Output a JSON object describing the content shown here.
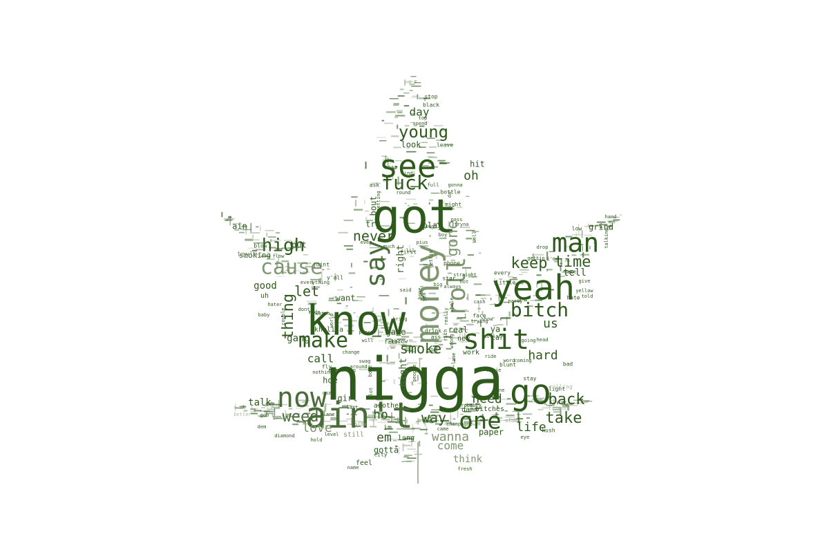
{
  "wordcloud": {
    "shape": "cannabis-leaf",
    "colors": {
      "dark": "#2e5a1c",
      "mid": "#4a6b3a",
      "light": "#7f9771",
      "pale": "#a9b9a0"
    },
    "words": [
      {
        "text": "nigga",
        "shade": "dark"
      },
      {
        "text": "know",
        "shade": "dark"
      },
      {
        "text": "got",
        "shade": "dark"
      },
      {
        "text": "ain't",
        "shade": "mid"
      },
      {
        "text": "money",
        "shade": "light"
      },
      {
        "text": "see",
        "shade": "dark"
      },
      {
        "text": "yeah",
        "shade": "dark"
      },
      {
        "text": "shit",
        "shade": "dark"
      },
      {
        "text": "go",
        "shade": "dark"
      },
      {
        "text": "now",
        "shade": "mid"
      },
      {
        "text": "man",
        "shade": "dark"
      },
      {
        "text": "say",
        "shade": "mid"
      },
      {
        "text": "fuck",
        "shade": "dark"
      },
      {
        "text": "cause",
        "shade": "light"
      },
      {
        "text": "one",
        "shade": "dark"
      },
      {
        "text": "make",
        "shade": "dark"
      },
      {
        "text": "high",
        "shade": "dark"
      },
      {
        "text": "roll",
        "shade": "light"
      },
      {
        "text": "bitch",
        "shade": "dark"
      },
      {
        "text": "young",
        "shade": "dark"
      },
      {
        "text": "keep",
        "shade": "dark"
      },
      {
        "text": "time",
        "shade": "dark"
      },
      {
        "text": "back",
        "shade": "dark"
      },
      {
        "text": "take",
        "shade": "dark"
      },
      {
        "text": "smoke",
        "shade": "dark"
      },
      {
        "text": "weed",
        "shade": "mid"
      },
      {
        "text": "gone",
        "shade": "light"
      },
      {
        "text": "never",
        "shade": "dark"
      },
      {
        "text": "thing",
        "shade": "dark"
      },
      {
        "text": "way",
        "shade": "dark"
      },
      {
        "text": "life",
        "shade": "dark"
      },
      {
        "text": "let",
        "shade": "dark"
      },
      {
        "text": "us",
        "shade": "dark"
      },
      {
        "text": "hard",
        "shade": "dark"
      },
      {
        "text": "need",
        "shade": "dark"
      },
      {
        "text": "wanna",
        "shade": "light"
      },
      {
        "text": "ho",
        "shade": "dark"
      },
      {
        "text": "oh",
        "shade": "dark"
      },
      {
        "text": "day",
        "shade": "dark"
      },
      {
        "text": "love",
        "shade": "light"
      },
      {
        "text": "em",
        "shade": "dark"
      },
      {
        "text": "call",
        "shade": "dark"
      },
      {
        "text": "come",
        "shade": "light"
      },
      {
        "text": "good",
        "shade": "dark"
      },
      {
        "text": "tell",
        "shade": "dark"
      },
      {
        "text": "night",
        "shade": "mid"
      },
      {
        "text": "right",
        "shade": "mid"
      },
      {
        "text": "look",
        "shade": "dark"
      },
      {
        "text": "gotta",
        "shade": "dark"
      },
      {
        "text": "think",
        "shade": "light"
      },
      {
        "text": "girl",
        "shade": "dark"
      },
      {
        "text": "talk",
        "shade": "dark"
      },
      {
        "text": "put",
        "shade": "dark"
      },
      {
        "text": "gang",
        "shade": "dark"
      },
      {
        "text": "hoe",
        "shade": "dark"
      },
      {
        "text": "play",
        "shade": "dark"
      },
      {
        "text": "want",
        "shade": "dark"
      },
      {
        "text": "real",
        "shade": "dark"
      },
      {
        "text": "game",
        "shade": "dark"
      },
      {
        "text": "hit",
        "shade": "dark"
      },
      {
        "text": "bout",
        "shade": "dark"
      },
      {
        "text": "try",
        "shade": "dark"
      },
      {
        "text": "ya",
        "shade": "dark"
      },
      {
        "text": "im",
        "shade": "dark"
      },
      {
        "text": "ain",
        "shade": "dark"
      },
      {
        "text": "paper",
        "shade": "dark"
      },
      {
        "text": "smoking",
        "shade": "dark"
      },
      {
        "text": "taylor",
        "shade": "light"
      },
      {
        "text": "khalifa",
        "shade": "dark"
      },
      {
        "text": "another",
        "shade": "dark"
      },
      {
        "text": "still",
        "shade": "light"
      },
      {
        "text": "feel",
        "shade": "dark"
      },
      {
        "text": "long",
        "shade": "dark"
      },
      {
        "text": "damn",
        "shade": "dark"
      },
      {
        "text": "bitches",
        "shade": "dark"
      },
      {
        "text": "grind",
        "shade": "dark"
      },
      {
        "text": "new",
        "shade": "dark"
      },
      {
        "text": "work",
        "shade": "dark"
      },
      {
        "text": "car",
        "shade": "dark"
      },
      {
        "text": "fly",
        "shade": "dark"
      },
      {
        "text": "every",
        "shade": "dark"
      },
      {
        "text": "little",
        "shade": "dark"
      },
      {
        "text": "low",
        "shade": "dark"
      },
      {
        "text": "hate",
        "shade": "dark"
      },
      {
        "text": "bad",
        "shade": "dark"
      },
      {
        "text": "stay",
        "shade": "dark"
      },
      {
        "text": "light",
        "shade": "dark"
      },
      {
        "text": "blunt",
        "shade": "dark"
      },
      {
        "text": "kush",
        "shade": "dark"
      },
      {
        "text": "face",
        "shade": "dark"
      },
      {
        "text": "star",
        "shade": "dark"
      },
      {
        "text": "fake",
        "shade": "dark"
      },
      {
        "text": "drink",
        "shade": "dark"
      },
      {
        "text": "y'all",
        "shade": "dark"
      },
      {
        "text": "uh",
        "shade": "dark"
      },
      {
        "text": "ass",
        "shade": "dark"
      },
      {
        "text": "phone",
        "shade": "dark"
      },
      {
        "text": "city",
        "shade": "dark"
      },
      {
        "text": "boss",
        "shade": "dark"
      },
      {
        "text": "black",
        "shade": "dark"
      },
      {
        "text": "stop",
        "shade": "dark"
      },
      {
        "text": "spend",
        "shade": "dark"
      },
      {
        "text": "top",
        "shade": "dark"
      },
      {
        "text": "leave",
        "shade": "dark"
      },
      {
        "text": "find",
        "shade": "dark"
      },
      {
        "text": "round",
        "shade": "dark"
      },
      {
        "text": "bottle",
        "shade": "dark"
      },
      {
        "text": "might",
        "shade": "dark"
      },
      {
        "text": "gonna",
        "shade": "dark"
      },
      {
        "text": "ask",
        "shade": "dark"
      },
      {
        "text": "getting",
        "shade": "dark"
      },
      {
        "text": "tryna",
        "shade": "dark"
      },
      {
        "text": "boy",
        "shade": "dark"
      },
      {
        "text": "well",
        "shade": "dark"
      },
      {
        "text": "much",
        "shade": "dark"
      },
      {
        "text": "even",
        "shade": "dark"
      },
      {
        "text": "joint",
        "shade": "dark"
      },
      {
        "text": "flow",
        "shade": "dark"
      },
      {
        "text": "blow",
        "shade": "dark"
      },
      {
        "text": "everything",
        "shade": "dark"
      },
      {
        "text": "hater",
        "shade": "dark"
      },
      {
        "text": "dont",
        "shade": "dark"
      },
      {
        "text": "made",
        "shade": "dark"
      },
      {
        "text": "baby",
        "shade": "dark"
      },
      {
        "text": "couple",
        "shade": "dark"
      },
      {
        "text": "world",
        "shade": "dark"
      },
      {
        "text": "watch",
        "shade": "dark"
      },
      {
        "text": "place",
        "shade": "dark"
      },
      {
        "text": "bring",
        "shade": "dark"
      },
      {
        "text": "throw",
        "shade": "dark"
      },
      {
        "text": "will",
        "shade": "dark"
      },
      {
        "text": "change",
        "shade": "dark"
      },
      {
        "text": "swag",
        "shade": "dark"
      },
      {
        "text": "mean",
        "shade": "dark"
      },
      {
        "text": "nothing",
        "shade": "dark"
      },
      {
        "text": "boyz",
        "shade": "dark"
      },
      {
        "text": "around",
        "shade": "dark"
      },
      {
        "text": "something",
        "shade": "dark"
      },
      {
        "text": "people",
        "shade": "dark"
      },
      {
        "text": "said",
        "shade": "dark"
      },
      {
        "text": "yea",
        "shade": "dark"
      },
      {
        "text": "hot",
        "shade": "dark"
      },
      {
        "text": "always",
        "shade": "dark"
      },
      {
        "text": "straight",
        "shade": "dark"
      },
      {
        "text": "big",
        "shade": "dark"
      },
      {
        "text": "home",
        "shade": "dark"
      },
      {
        "text": "first",
        "shade": "dark"
      },
      {
        "text": "gettin'",
        "shade": "dark"
      },
      {
        "text": "really",
        "shade": "dark"
      },
      {
        "text": "cash",
        "shade": "dark"
      },
      {
        "text": "whole",
        "shade": "dark"
      },
      {
        "text": "trying",
        "shade": "dark"
      },
      {
        "text": "show",
        "shade": "dark"
      },
      {
        "text": "party",
        "shade": "dark"
      },
      {
        "text": "going",
        "shade": "dark"
      },
      {
        "text": "head",
        "shade": "dark"
      },
      {
        "text": "ride",
        "shade": "dark"
      },
      {
        "text": "homie",
        "shade": "dark"
      },
      {
        "text": "mine",
        "shade": "dark"
      },
      {
        "text": "wiz",
        "shade": "dark"
      },
      {
        "text": "probably",
        "shade": "dark"
      },
      {
        "text": "club",
        "shade": "light"
      },
      {
        "text": "friend",
        "shade": "pale"
      },
      {
        "text": "rolling",
        "shade": "pale"
      },
      {
        "text": "eye",
        "shade": "dark"
      },
      {
        "text": "name",
        "shade": "dark"
      },
      {
        "text": "fresh",
        "shade": "dark"
      },
      {
        "text": "cuz",
        "shade": "dark"
      },
      {
        "text": "last",
        "shade": "dark"
      },
      {
        "text": "plane",
        "shade": "dark"
      },
      {
        "text": "slow",
        "shade": "light"
      },
      {
        "text": "level",
        "shade": "dark"
      },
      {
        "text": "hold",
        "shade": "dark"
      },
      {
        "text": "diamond",
        "shade": "dark"
      },
      {
        "text": "better",
        "shade": "pale"
      },
      {
        "text": "gon",
        "shade": "dark"
      },
      {
        "text": "gon'",
        "shade": "dark"
      },
      {
        "text": "dem",
        "shade": "dark"
      },
      {
        "text": "lot",
        "shade": "dark"
      },
      {
        "text": "came",
        "shade": "dark"
      },
      {
        "text": "champagne",
        "shade": "dark"
      },
      {
        "text": "told",
        "shade": "dark"
      },
      {
        "text": "yellow",
        "shade": "dark"
      },
      {
        "text": "give",
        "shade": "dark"
      },
      {
        "text": "best",
        "shade": "dark"
      },
      {
        "text": "drop",
        "shade": "dark"
      },
      {
        "text": "gettin",
        "shade": "dark"
      },
      {
        "text": "i'ma",
        "shade": "dark"
      },
      {
        "text": "talking",
        "shade": "dark"
      },
      {
        "text": "rich",
        "shade": "dark"
      },
      {
        "text": "wrong",
        "shade": "dark"
      },
      {
        "text": "dollar",
        "shade": "dark"
      },
      {
        "text": "lame",
        "shade": "dark"
      },
      {
        "text": "da",
        "shade": "dark"
      },
      {
        "text": "pass",
        "shade": "dark"
      },
      {
        "text": "full",
        "shade": "dark"
      },
      {
        "text": "enough",
        "shade": "dark"
      },
      {
        "text": "pius",
        "shade": "dark"
      },
      {
        "text": "lil",
        "shade": "dark"
      },
      {
        "text": "word",
        "shade": "dark"
      },
      {
        "text": "coming",
        "shade": "dark"
      },
      {
        "text": "hand",
        "shade": "dark"
      }
    ]
  }
}
